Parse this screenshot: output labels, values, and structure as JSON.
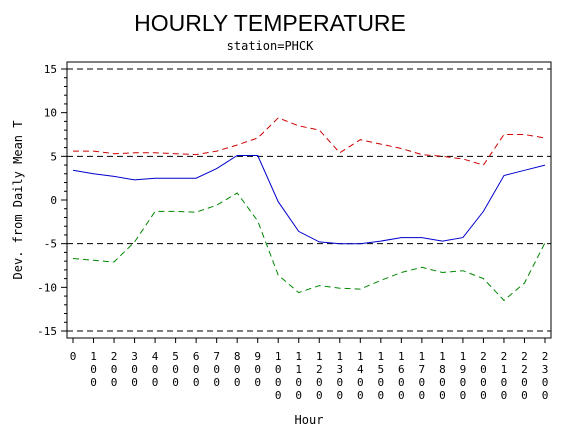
{
  "chart_data": {
    "type": "line",
    "title": "HOURLY TEMPERATURE",
    "subtitle": "station=PHCK",
    "xlabel": "Hour",
    "ylabel": "Dev. from Daily Mean T",
    "x_ticks": [
      "0",
      "100",
      "200",
      "300",
      "400",
      "500",
      "600",
      "700",
      "800",
      "900",
      "1000",
      "1100",
      "1200",
      "1300",
      "1400",
      "1500",
      "1600",
      "1700",
      "1800",
      "1900",
      "2000",
      "2100",
      "2200",
      "2300"
    ],
    "y_ticks": [
      -15,
      -10,
      -5,
      0,
      5,
      10,
      15
    ],
    "xlim": [
      0,
      2300
    ],
    "ylim": [
      -15.8,
      15.8
    ],
    "reference_lines": [
      15,
      5,
      -5,
      -15
    ],
    "colors": {
      "mean": "#0000cc",
      "upper": "#cc0000",
      "lower": "#008800",
      "reference": "#000000"
    },
    "x": [
      0,
      100,
      200,
      300,
      400,
      500,
      600,
      700,
      800,
      900,
      1000,
      1100,
      1200,
      1300,
      1400,
      1500,
      1600,
      1700,
      1800,
      1900,
      2000,
      2100,
      2200,
      2300
    ],
    "series": [
      {
        "key": "mean",
        "style": "solid",
        "values": [
          3.4,
          3.0,
          2.7,
          2.3,
          2.5,
          2.5,
          2.5,
          3.6,
          5.1,
          5.1,
          -0.2,
          -3.6,
          -4.8,
          -5.0,
          -5.0,
          -4.7,
          -4.3,
          -4.3,
          -4.7,
          -4.3,
          -1.3,
          2.8,
          3.4,
          4.0
        ]
      },
      {
        "key": "upper",
        "style": "dashed",
        "values": [
          5.6,
          5.6,
          5.3,
          5.4,
          5.4,
          5.3,
          5.2,
          5.6,
          6.3,
          7.1,
          9.4,
          8.5,
          8.0,
          5.4,
          6.9,
          6.4,
          5.9,
          5.2,
          5.0,
          4.7,
          4.0,
          7.5,
          7.5,
          7.1
        ]
      },
      {
        "key": "lower",
        "style": "dashed",
        "values": [
          -6.7,
          -6.9,
          -7.1,
          -4.8,
          -1.3,
          -1.3,
          -1.4,
          -0.6,
          0.8,
          -2.4,
          -8.6,
          -10.6,
          -9.8,
          -10.1,
          -10.2,
          -9.2,
          -8.3,
          -7.7,
          -8.3,
          -8.1,
          -9.0,
          -11.5,
          -9.5,
          -4.9
        ]
      }
    ]
  }
}
